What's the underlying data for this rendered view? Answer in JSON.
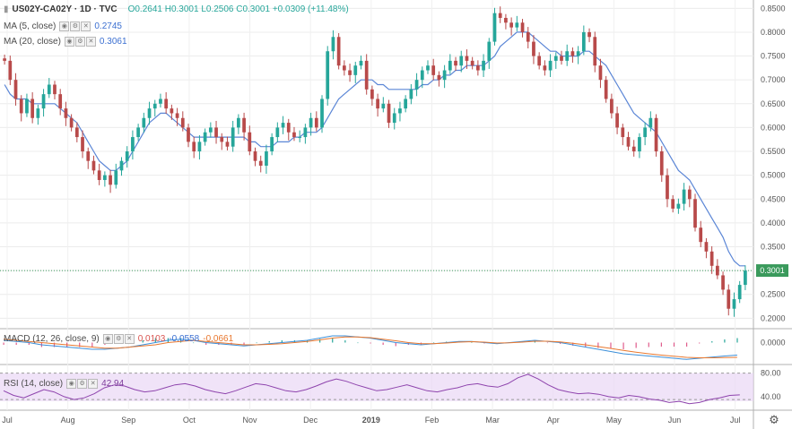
{
  "header": {
    "symbol": "US02Y-CA02Y · 1D · TVC",
    "ohlc": "O0.2641 H0.3001 L0.2506 C0.3001 +0.0309 (+11.48%)",
    "ma5_label": "MA (5, close)",
    "ma5_value": "0.2745",
    "ma20_label": "MA (20, close)",
    "ma20_value": "0.3061",
    "macd_label": "MACD (12, 26, close, 9)",
    "macd_hist_value": "0.0103",
    "macd_value": "-0.0558",
    "macd_signal_value": "-0.0661",
    "rsi_label": "RSI (14, close)",
    "rsi_value": "42.94"
  },
  "icons": {
    "settings": "gear-icon",
    "legend_buttons": [
      "eye-icon",
      "settings-icon",
      "close-icon"
    ]
  },
  "colors": {
    "up": "#26a69a",
    "down": "#b84a4a",
    "ma5": "#5b86d6",
    "ma20": "#5b86d6",
    "macd": "#3b8fd9",
    "signal": "#e8772e",
    "rsi": "#8e44ad",
    "last_price": "#3a9a5c"
  },
  "chart_data": [
    {
      "type": "candlestick",
      "title": "US02Y-CA02Y · 1D · TVC",
      "last_value": "0.3001",
      "ylim": [
        0.18,
        0.86
      ],
      "y_ticks": [
        "0.8500",
        "0.8000",
        "0.7500",
        "0.7000",
        "0.6500",
        "0.6000",
        "0.5500",
        "0.5000",
        "0.4500",
        "0.4000",
        "0.3500",
        "0.3000",
        "0.2500",
        "0.2000"
      ],
      "x_ticks": [
        "Jul",
        "Aug",
        "Sep",
        "Oct",
        "Nov",
        "Dec",
        "2019",
        "Feb",
        "Mar",
        "Apr",
        "May",
        "Jun",
        "Jul"
      ],
      "close_series": [
        0.74,
        0.7,
        0.66,
        0.63,
        0.66,
        0.62,
        0.64,
        0.67,
        0.69,
        0.67,
        0.64,
        0.62,
        0.6,
        0.58,
        0.55,
        0.53,
        0.51,
        0.49,
        0.5,
        0.48,
        0.51,
        0.53,
        0.55,
        0.58,
        0.6,
        0.62,
        0.64,
        0.65,
        0.66,
        0.64,
        0.63,
        0.62,
        0.6,
        0.57,
        0.55,
        0.57,
        0.59,
        0.6,
        0.58,
        0.57,
        0.56,
        0.6,
        0.62,
        0.59,
        0.55,
        0.53,
        0.52,
        0.55,
        0.58,
        0.6,
        0.61,
        0.59,
        0.58,
        0.58,
        0.6,
        0.62,
        0.6,
        0.66,
        0.76,
        0.79,
        0.73,
        0.72,
        0.71,
        0.73,
        0.74,
        0.68,
        0.66,
        0.64,
        0.65,
        0.61,
        0.63,
        0.64,
        0.66,
        0.68,
        0.7,
        0.72,
        0.73,
        0.71,
        0.7,
        0.72,
        0.74,
        0.73,
        0.75,
        0.74,
        0.73,
        0.72,
        0.74,
        0.78,
        0.84,
        0.83,
        0.82,
        0.81,
        0.82,
        0.8,
        0.78,
        0.75,
        0.73,
        0.72,
        0.74,
        0.75,
        0.74,
        0.76,
        0.75,
        0.76,
        0.8,
        0.79,
        0.73,
        0.7,
        0.66,
        0.63,
        0.6,
        0.58,
        0.56,
        0.55,
        0.58,
        0.6,
        0.62,
        0.55,
        0.5,
        0.45,
        0.43,
        0.44,
        0.47,
        0.45,
        0.39,
        0.36,
        0.34,
        0.31,
        0.29,
        0.26,
        0.22,
        0.24,
        0.27,
        0.3
      ],
      "ma20_series": [
        0.69,
        0.67,
        0.66,
        0.66,
        0.66,
        0.65,
        0.65,
        0.65,
        0.65,
        0.65,
        0.64,
        0.63,
        0.62,
        0.61,
        0.59,
        0.57,
        0.55,
        0.53,
        0.52,
        0.51,
        0.51,
        0.52,
        0.53,
        0.55,
        0.57,
        0.59,
        0.61,
        0.62,
        0.63,
        0.63,
        0.62,
        0.61,
        0.6,
        0.59,
        0.58,
        0.58,
        0.58,
        0.58,
        0.58,
        0.58,
        0.58,
        0.58,
        0.58,
        0.58,
        0.57,
        0.57,
        0.56,
        0.56,
        0.56,
        0.57,
        0.57,
        0.57,
        0.58,
        0.58,
        0.59,
        0.59,
        0.59,
        0.6,
        0.62,
        0.64,
        0.66,
        0.67,
        0.68,
        0.69,
        0.7,
        0.7,
        0.7,
        0.69,
        0.69,
        0.68,
        0.68,
        0.68,
        0.68,
        0.68,
        0.68,
        0.69,
        0.69,
        0.7,
        0.7,
        0.71,
        0.71,
        0.72,
        0.72,
        0.73,
        0.73,
        0.73,
        0.73,
        0.74,
        0.75,
        0.77,
        0.78,
        0.79,
        0.8,
        0.8,
        0.8,
        0.79,
        0.78,
        0.77,
        0.76,
        0.76,
        0.75,
        0.75,
        0.75,
        0.75,
        0.76,
        0.76,
        0.75,
        0.74,
        0.73,
        0.71,
        0.69,
        0.67,
        0.65,
        0.63,
        0.62,
        0.61,
        0.6,
        0.59,
        0.57,
        0.55,
        0.53,
        0.51,
        0.5,
        0.49,
        0.47,
        0.45,
        0.43,
        0.41,
        0.39,
        0.37,
        0.34,
        0.32,
        0.31,
        0.31
      ]
    },
    {
      "type": "line",
      "title": "MACD (12, 26, close, 9)",
      "y_ticks": [
        "0.0000"
      ],
      "series": [
        {
          "name": "MACD",
          "values": [
            0.01,
            0.005,
            0.0,
            -0.01,
            -0.015,
            -0.02,
            -0.025,
            -0.03,
            -0.03,
            -0.025,
            -0.02,
            -0.01,
            0.0,
            0.01,
            0.015,
            0.01,
            0.0,
            -0.005,
            -0.01,
            -0.015,
            -0.01,
            -0.005,
            0.0,
            0.005,
            0.01,
            0.02,
            0.03,
            0.03,
            0.025,
            0.02,
            0.01,
            0.0,
            -0.005,
            -0.01,
            -0.005,
            0.0,
            0.005,
            0.005,
            0.0,
            -0.005,
            0.0,
            0.005,
            0.01,
            0.005,
            0.0,
            -0.01,
            -0.02,
            -0.03,
            -0.04,
            -0.05,
            -0.055,
            -0.06,
            -0.065,
            -0.07,
            -0.075,
            -0.07,
            -0.065,
            -0.06,
            -0.056
          ]
        },
        {
          "name": "Signal",
          "values": [
            0.015,
            0.01,
            0.005,
            0.0,
            -0.005,
            -0.01,
            -0.015,
            -0.02,
            -0.025,
            -0.025,
            -0.02,
            -0.015,
            -0.01,
            0.0,
            0.005,
            0.01,
            0.005,
            0.0,
            -0.005,
            -0.01,
            -0.01,
            -0.008,
            -0.005,
            0.0,
            0.005,
            0.012,
            0.02,
            0.025,
            0.025,
            0.022,
            0.015,
            0.008,
            0.0,
            -0.005,
            -0.005,
            -0.002,
            0.002,
            0.004,
            0.002,
            -0.002,
            -0.001,
            0.002,
            0.006,
            0.006,
            0.003,
            -0.003,
            -0.01,
            -0.018,
            -0.026,
            -0.035,
            -0.043,
            -0.05,
            -0.056,
            -0.061,
            -0.066,
            -0.068,
            -0.068,
            -0.067,
            -0.066
          ]
        }
      ]
    },
    {
      "type": "line",
      "title": "RSI (14, close)",
      "y_ticks": [
        "80.00",
        "40.00"
      ],
      "series": [
        {
          "name": "RSI",
          "values": [
            50,
            42,
            38,
            45,
            52,
            48,
            40,
            35,
            38,
            45,
            55,
            60,
            58,
            52,
            48,
            50,
            55,
            60,
            62,
            58,
            52,
            48,
            45,
            50,
            56,
            62,
            60,
            55,
            50,
            48,
            52,
            58,
            65,
            70,
            66,
            60,
            55,
            50,
            52,
            56,
            60,
            55,
            50,
            48,
            52,
            55,
            60,
            62,
            58,
            56,
            62,
            72,
            78,
            70,
            60,
            52,
            48,
            45,
            46,
            44,
            40,
            38,
            42,
            40,
            36,
            34,
            30,
            32,
            28,
            30,
            35,
            38,
            42,
            43
          ]
        }
      ]
    }
  ]
}
